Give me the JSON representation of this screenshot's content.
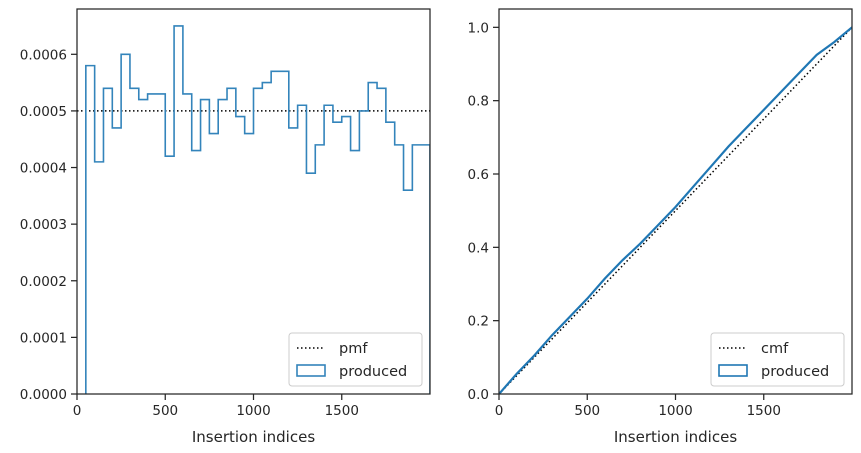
{
  "chart_data": [
    {
      "type": "step",
      "title": "",
      "xlabel": "Insertion indices",
      "ylabel": "",
      "xlim": [
        0,
        2000
      ],
      "ylim": [
        0,
        0.00068
      ],
      "xticks": [
        0,
        500,
        1000,
        1500
      ],
      "xtick_labels": [
        "0",
        "500",
        "1000",
        "1500"
      ],
      "yticks": [
        0,
        0.0001,
        0.0002,
        0.0003,
        0.0004,
        0.0005,
        0.0006
      ],
      "ytick_labels": [
        "0.0000",
        "0.0001",
        "0.0002",
        "0.0003",
        "0.0004",
        "0.0005",
        "0.0006"
      ],
      "grid": false,
      "legend": {
        "position": "lower right",
        "entries": [
          "pmf",
          "produced"
        ]
      },
      "reference": {
        "name": "pmf",
        "style": "dotted",
        "color": "#000000",
        "y": 0.0005
      },
      "series": [
        {
          "name": "produced",
          "color": "#3384bb",
          "bin_width": 50,
          "bin_start": 50,
          "values": [
            0.00058,
            0.00041,
            0.00054,
            0.00047,
            0.0006,
            0.00054,
            0.00052,
            0.00053,
            0.00053,
            0.00042,
            0.00065,
            0.00053,
            0.00043,
            0.00052,
            0.00046,
            0.00052,
            0.00054,
            0.00049,
            0.00046,
            0.00054,
            0.00055,
            0.00057,
            0.00057,
            0.00047,
            0.00051,
            0.00039,
            0.00044,
            0.00051,
            0.00048,
            0.00049,
            0.00043,
            0.0005,
            0.00055,
            0.00054,
            0.00048,
            0.00044,
            0.00036,
            0.00044,
            0.00044
          ]
        }
      ]
    },
    {
      "type": "line",
      "title": "",
      "xlabel": "Insertion indices",
      "ylabel": "",
      "xlim": [
        0,
        2000
      ],
      "ylim": [
        0,
        1.05
      ],
      "xticks": [
        0,
        500,
        1000,
        1500
      ],
      "xtick_labels": [
        "0",
        "500",
        "1000",
        "1500"
      ],
      "yticks": [
        0,
        0.2,
        0.4,
        0.6,
        0.8,
        1.0
      ],
      "ytick_labels": [
        "0.0",
        "0.2",
        "0.4",
        "0.6",
        "0.8",
        "1.0"
      ],
      "grid": false,
      "legend": {
        "position": "lower right",
        "entries": [
          "cmf",
          "produced"
        ]
      },
      "reference": {
        "name": "cmf",
        "style": "dotted",
        "color": "#000000",
        "x": [
          0,
          2000
        ],
        "y": [
          0,
          1.0
        ]
      },
      "series": [
        {
          "name": "produced",
          "color": "#1f77b4",
          "x": [
            0,
            100,
            200,
            300,
            400,
            500,
            600,
            700,
            800,
            900,
            1000,
            1100,
            1200,
            1300,
            1400,
            1500,
            1600,
            1700,
            1800,
            1900,
            2000
          ],
          "y": [
            0,
            0.055,
            0.105,
            0.16,
            0.21,
            0.26,
            0.315,
            0.365,
            0.41,
            0.46,
            0.51,
            0.565,
            0.62,
            0.675,
            0.725,
            0.775,
            0.825,
            0.875,
            0.925,
            0.96,
            1.0
          ]
        }
      ]
    }
  ]
}
